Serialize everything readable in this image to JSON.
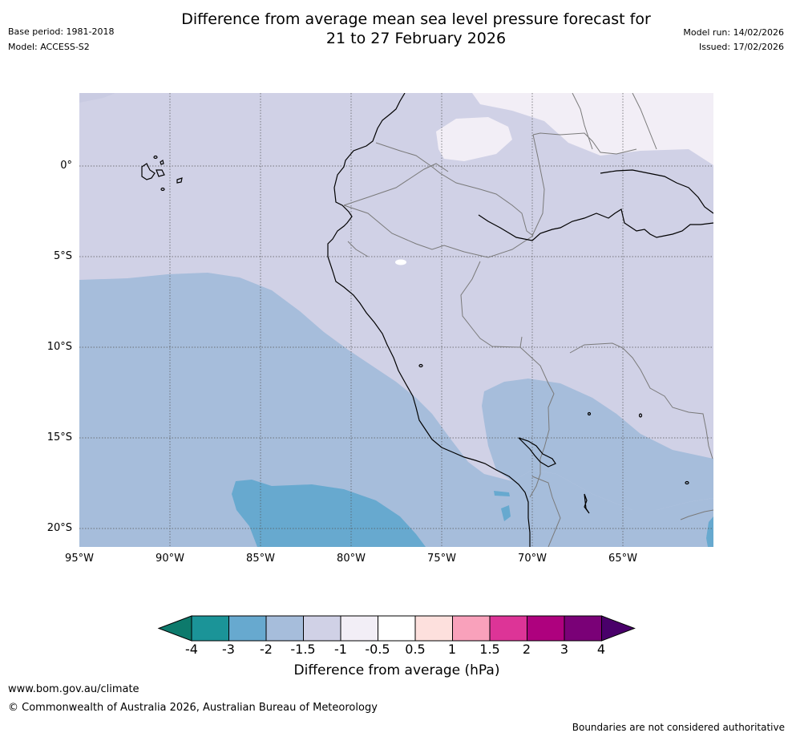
{
  "header": {
    "title_line1": "Difference from average mean sea level pressure forecast for",
    "title_line2": "21 to 27 February 2026",
    "base_period": "Base period: 1981-2018",
    "model": "Model: ACCESS-S2",
    "model_run": "Model run: 14/02/2026",
    "issued": "Issued: 17/02/2026"
  },
  "map": {
    "latitude_labels": [
      "0°",
      "5°S",
      "10°S",
      "15°S",
      "20°S"
    ],
    "longitude_labels": [
      "95°W",
      "90°W",
      "85°W",
      "80°W",
      "75°W",
      "70°W",
      "65°W"
    ],
    "colors": {
      "minus_1_5_to_minus_1": "#d0d1e6",
      "minus_2_to_minus_1_5": "#a6bddb",
      "minus_3_to_minus_2": "#67a9cf",
      "minus_1_to_minus_0_5": "#f2eef6",
      "minus_0_5_to_0_5": "#ffffff",
      "coastline": "#000000",
      "borders": "#7a7a7a",
      "gridlines": "#555555"
    }
  },
  "colorbar": {
    "tick_labels": [
      "-4",
      "-3",
      "-2",
      "-1.5",
      "-1",
      "-0.5",
      "0.5",
      "1",
      "1.5",
      "2",
      "3",
      "4"
    ],
    "colors": [
      "#0d7a6c",
      "#1b9498",
      "#67a9cf",
      "#a6bddb",
      "#d0d1e6",
      "#f2eef6",
      "#ffffff",
      "#fde0dd",
      "#f9a1bb",
      "#dd3497",
      "#ae017e",
      "#7a0177",
      "#49006a"
    ],
    "title": "Difference from average (hPa)"
  },
  "footer": {
    "url": "www.bom.gov.au/climate",
    "copyright": "© Commonwealth of Australia 2026, Australian Bureau of Meteorology",
    "disclaimer": "Boundaries are not considered authoritative"
  }
}
